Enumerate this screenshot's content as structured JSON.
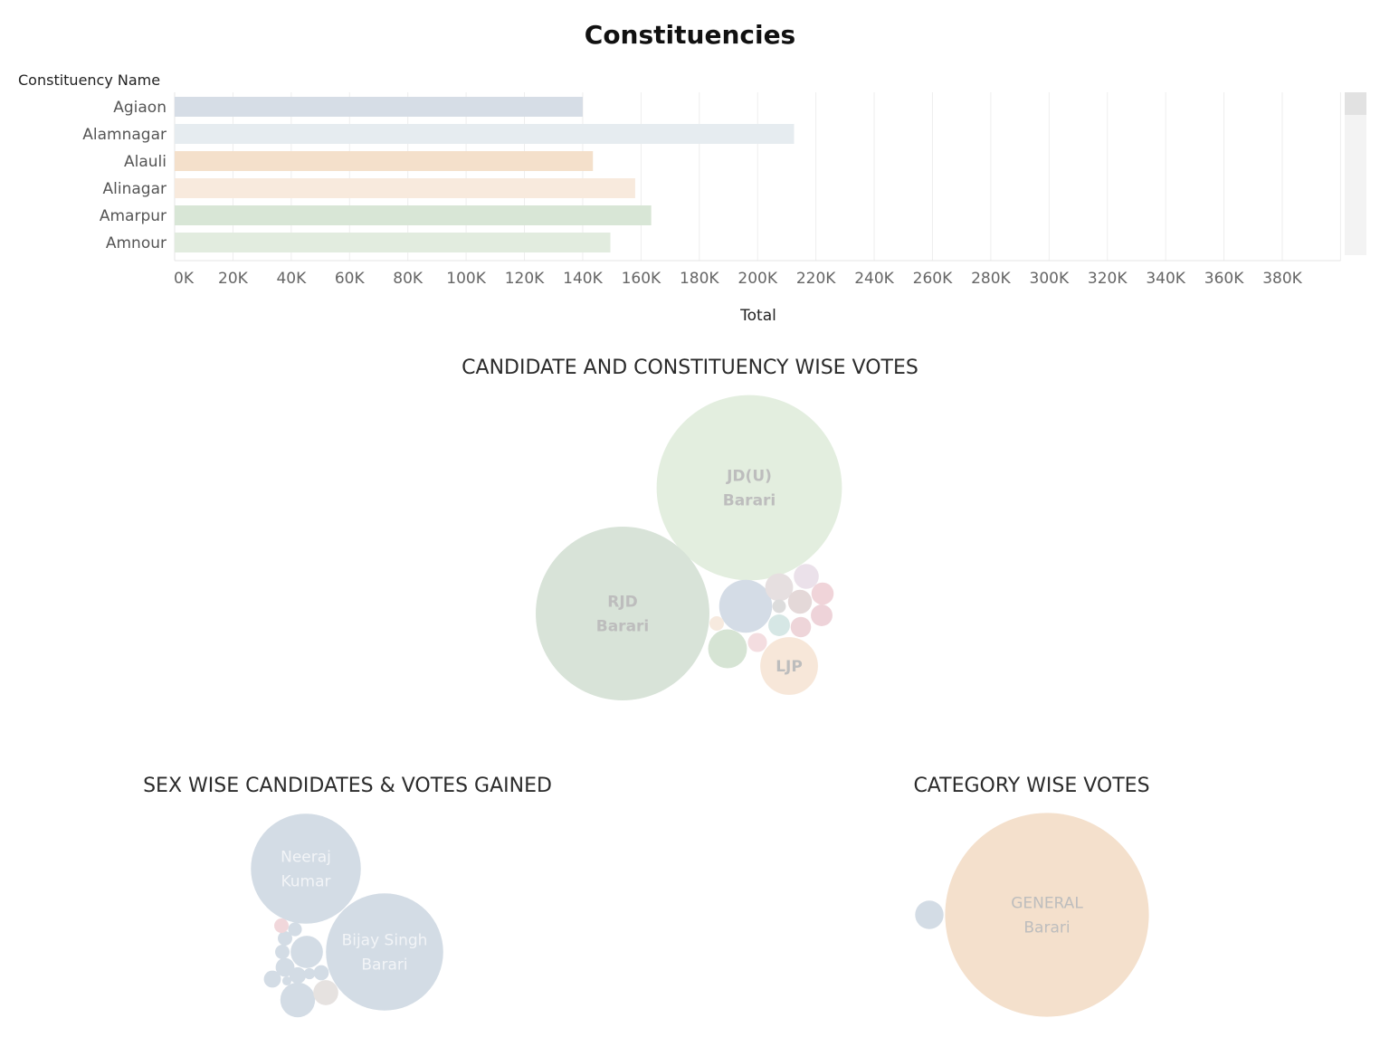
{
  "page": {
    "title": "Constituencies",
    "row_header": "Constituency Name",
    "bubble_title": "CANDIDATE AND CONSTITUENCY WISE VOTES",
    "sex_title": "SEX WISE CANDIDATES & VOTES GAINED",
    "category_title": "CATEGORY WISE VOTES"
  },
  "colors": {
    "gridline": "#eeeeee",
    "scrollbar_track": "#f3f3f3",
    "scrollbar_thumb": "#e2e2e2",
    "bubble_label_dark": "#bdbdbd",
    "bubble_label_light": "#f2f4f7"
  },
  "chart_data": [
    {
      "type": "bar",
      "orientation": "horizontal",
      "title": "Constituencies",
      "ylabel": "Constituency Name",
      "xlabel": "Total",
      "categories": [
        "Agiaon",
        "Alamnagar",
        "Alauli",
        "Alinagar",
        "Amarpur",
        "Amnour"
      ],
      "values": [
        140000,
        212500,
        143500,
        158000,
        163500,
        149500
      ],
      "colors": [
        "#d6dde6",
        "#e6ecf0",
        "#f4e0cb",
        "#f8eadd",
        "#d8e6d6",
        "#e2ecdf"
      ],
      "xlim": [
        0,
        400000
      ],
      "xticks": [
        0,
        20000,
        40000,
        60000,
        80000,
        100000,
        120000,
        140000,
        160000,
        180000,
        200000,
        220000,
        240000,
        260000,
        280000,
        300000,
        320000,
        340000,
        360000,
        380000
      ],
      "xtick_labels": [
        "0K",
        "20K",
        "40K",
        "60K",
        "80K",
        "100K",
        "120K",
        "140K",
        "160K",
        "180K",
        "200K",
        "220K",
        "240K",
        "260K",
        "280K",
        "300K",
        "320K",
        "340K",
        "360K",
        "380K"
      ],
      "grid": true
    },
    {
      "type": "bubble",
      "title": "CANDIDATE AND CONSTITUENCY WISE VOTES",
      "bubbles": [
        {
          "label": [
            "JD(U)",
            "Barari"
          ],
          "size": 66000,
          "color": "#e3eedf"
        },
        {
          "label": [
            "RJD",
            "Barari"
          ],
          "size": 58000,
          "color": "#d8e3d8"
        },
        {
          "label": [
            "LJP"
          ],
          "size": 6400,
          "color": "#f7e7d9"
        },
        {
          "label": [],
          "size": 5400,
          "color": "#d4dce6"
        },
        {
          "label": [],
          "size": 2900,
          "color": "#d6e4d4"
        },
        {
          "label": [],
          "size": 1500,
          "color": "#e6dfe0"
        },
        {
          "label": [],
          "size": 1200,
          "color": "#ebe1ea"
        },
        {
          "label": [],
          "size": 1100,
          "color": "#e4d8d8"
        },
        {
          "label": [],
          "size": 950,
          "color": "#f0d4d9"
        },
        {
          "label": [],
          "size": 900,
          "color": "#eed3d9"
        },
        {
          "label": [],
          "size": 900,
          "color": "#d6e7e5"
        },
        {
          "label": [],
          "size": 800,
          "color": "#eed5d9"
        },
        {
          "label": [],
          "size": 700,
          "color": "#f4dde0"
        },
        {
          "label": [],
          "size": 400,
          "color": "#f7eadf"
        },
        {
          "label": [],
          "size": 350,
          "color": "#dcdcdc"
        }
      ]
    },
    {
      "type": "bubble",
      "title": "SEX WISE CANDIDATES & VOTES GAINED",
      "bubbles": [
        {
          "label": [
            "Bijay Singh",
            "Barari"
          ],
          "size": 66000,
          "color": "#d3dce5"
        },
        {
          "label": [
            "Neeraj",
            "Kumar"
          ],
          "size": 58000,
          "color": "#d3dce5"
        },
        {
          "label": [],
          "size": 5800,
          "color": "#d3dce5"
        },
        {
          "label": [],
          "size": 5000,
          "color": "#d3dce5"
        },
        {
          "label": [],
          "size": 3000,
          "color": "#e6e2e0"
        },
        {
          "label": [],
          "size": 1700,
          "color": "#d3dce5"
        },
        {
          "label": [],
          "size": 1400,
          "color": "#d3dce5"
        },
        {
          "label": [],
          "size": 1300,
          "color": "#d3dce5"
        },
        {
          "label": [],
          "size": 1100,
          "color": "#d3dce5"
        },
        {
          "label": [],
          "size": 1000,
          "color": "#d3dce5"
        },
        {
          "label": [],
          "size": 1000,
          "color": "#d3dce5"
        },
        {
          "label": [],
          "size": 1000,
          "color": "#f1d7db"
        },
        {
          "label": [],
          "size": 900,
          "color": "#d3dce5"
        },
        {
          "label": [],
          "size": 600,
          "color": "#d3dce5"
        },
        {
          "label": [],
          "size": 400,
          "color": "#d3dce5"
        }
      ]
    },
    {
      "type": "bubble",
      "title": "CATEGORY WISE VOTES",
      "bubbles": [
        {
          "label": [
            "GENERAL",
            "Barari"
          ],
          "size": 190000,
          "color": "#f4e0cc"
        },
        {
          "label": [],
          "size": 3700,
          "color": "#d3dce5"
        }
      ]
    }
  ]
}
